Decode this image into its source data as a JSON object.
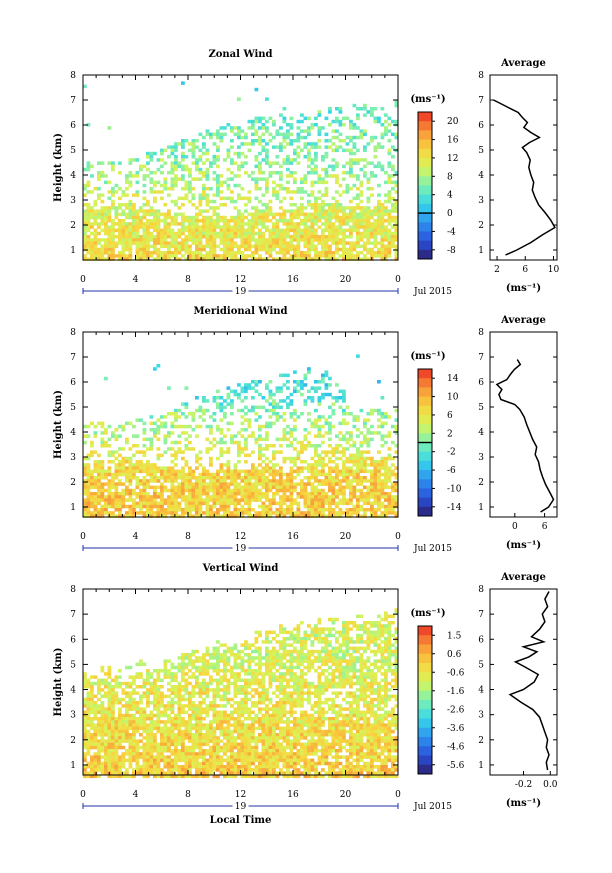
{
  "chart_data": [
    {
      "type": "heatmap",
      "title": "Zonal Wind",
      "ylabel": "Height (km)",
      "unit": "(ms⁻¹)",
      "x_ticks": [
        "0",
        "4",
        "8",
        "12",
        "16",
        "20",
        "0"
      ],
      "y_ticks": [
        "1",
        "2",
        "3",
        "4",
        "5",
        "6",
        "7",
        "8"
      ],
      "ylim": [
        0.6,
        8
      ],
      "xlim": [
        0,
        24
      ],
      "day_label": "19",
      "date_label": "Jul 2015",
      "colorbar": {
        "ticks": [
          "20",
          "16",
          "12",
          "8",
          "4",
          "0",
          "-4",
          "-8"
        ],
        "range": [
          -10,
          22
        ],
        "marker": 0
      },
      "average": {
        "title": "Average",
        "x_ticks": [
          "2",
          "6",
          "10"
        ],
        "xlim": [
          1,
          10.5
        ],
        "xlabel": "(ms⁻¹)",
        "profile": [
          [
            0.8,
            3.2
          ],
          [
            1.0,
            4.8
          ],
          [
            1.3,
            6.8
          ],
          [
            1.6,
            8.4
          ],
          [
            1.9,
            10.2
          ],
          [
            2.2,
            9.6
          ],
          [
            2.5,
            8.8
          ],
          [
            2.8,
            7.9
          ],
          [
            3.1,
            7.4
          ],
          [
            3.4,
            7.0
          ],
          [
            3.7,
            7.2
          ],
          [
            4.0,
            6.8
          ],
          [
            4.3,
            6.5
          ],
          [
            4.6,
            6.7
          ],
          [
            4.9,
            6.2
          ],
          [
            5.1,
            5.6
          ],
          [
            5.3,
            6.6
          ],
          [
            5.5,
            8.0
          ],
          [
            5.7,
            6.8
          ],
          [
            5.9,
            5.8
          ],
          [
            6.1,
            6.3
          ],
          [
            6.3,
            5.6
          ],
          [
            6.5,
            5.0
          ],
          [
            6.7,
            3.6
          ],
          [
            6.9,
            2.2
          ],
          [
            7.0,
            1.5
          ]
        ]
      },
      "data_bounds": [
        [
          0,
          2.8,
          4.6
        ],
        [
          3,
          2.9,
          4.7
        ],
        [
          6,
          2.6,
          5.1
        ],
        [
          9,
          2.4,
          5.8
        ],
        [
          12,
          2.5,
          6.2
        ],
        [
          15,
          2.6,
          6.6
        ],
        [
          18,
          3.0,
          6.7
        ],
        [
          21,
          2.8,
          6.9
        ],
        [
          24,
          2.9,
          7.0
        ]
      ],
      "field_mean": [
        [
          0.8,
          13
        ],
        [
          1.5,
          12
        ],
        [
          2.5,
          11
        ],
        [
          3.5,
          9
        ],
        [
          4.5,
          7
        ],
        [
          5.5,
          6
        ],
        [
          6.5,
          5
        ],
        [
          7.5,
          4
        ]
      ]
    },
    {
      "type": "heatmap",
      "title": "Meridional Wind",
      "ylabel": "Height (km)",
      "unit": "(ms⁻¹)",
      "x_ticks": [
        "0",
        "4",
        "8",
        "12",
        "16",
        "20",
        "0"
      ],
      "y_ticks": [
        "1",
        "2",
        "3",
        "4",
        "5",
        "6",
        "7",
        "8"
      ],
      "ylim": [
        0.6,
        8
      ],
      "xlim": [
        0,
        24
      ],
      "day_label": "19",
      "date_label": "Jul 2015",
      "colorbar": {
        "ticks": [
          "14",
          "10",
          "6",
          "2",
          "-2",
          "-6",
          "-10",
          "-14"
        ],
        "range": [
          -16,
          16
        ],
        "marker": 0
      },
      "average": {
        "title": "Average",
        "x_ticks": [
          "0",
          "6"
        ],
        "xlim": [
          -5,
          8.5
        ],
        "xlabel": "(ms⁻¹)",
        "profile": [
          [
            0.8,
            5.2
          ],
          [
            1.0,
            6.8
          ],
          [
            1.3,
            7.8
          ],
          [
            1.6,
            7.0
          ],
          [
            1.9,
            6.2
          ],
          [
            2.2,
            5.6
          ],
          [
            2.5,
            5.1
          ],
          [
            2.8,
            4.8
          ],
          [
            3.1,
            4.1
          ],
          [
            3.4,
            4.4
          ],
          [
            3.7,
            3.6
          ],
          [
            4.0,
            3.0
          ],
          [
            4.3,
            2.4
          ],
          [
            4.6,
            1.9
          ],
          [
            4.9,
            1.0
          ],
          [
            5.1,
            0.0
          ],
          [
            5.3,
            -2.8
          ],
          [
            5.5,
            -3.2
          ],
          [
            5.7,
            -2.6
          ],
          [
            5.9,
            -3.6
          ],
          [
            6.1,
            -1.6
          ],
          [
            6.3,
            -0.9
          ],
          [
            6.5,
            -0.1
          ],
          [
            6.7,
            1.1
          ],
          [
            6.9,
            0.5
          ]
        ]
      },
      "data_bounds": [
        [
          0,
          2.8,
          4.4
        ],
        [
          3,
          3.0,
          4.5
        ],
        [
          6,
          2.7,
          4.8
        ],
        [
          9,
          2.4,
          5.6
        ],
        [
          12,
          2.6,
          6.0
        ],
        [
          15,
          2.7,
          6.4
        ],
        [
          18,
          2.9,
          6.7
        ],
        [
          21,
          2.9,
          5.0
        ],
        [
          24,
          3.0,
          5.0
        ]
      ],
      "field_mean": [
        [
          0.8,
          8
        ],
        [
          1.5,
          8
        ],
        [
          2.5,
          7
        ],
        [
          3.5,
          4
        ],
        [
          4.5,
          2
        ],
        [
          5.5,
          -2
        ],
        [
          6.5,
          -3
        ],
        [
          7.5,
          0
        ]
      ]
    },
    {
      "type": "heatmap",
      "title": "Vertical Wind",
      "ylabel": "Height (km)",
      "xlabel": "Local Time",
      "unit": "(ms⁻¹)",
      "x_ticks": [
        "0",
        "4",
        "8",
        "12",
        "16",
        "20",
        "0"
      ],
      "y_ticks": [
        "1",
        "2",
        "3",
        "4",
        "5",
        "6",
        "7",
        "8"
      ],
      "ylim": [
        0.6,
        8
      ],
      "xlim": [
        0,
        24
      ],
      "day_label": "19",
      "date_label": "Jul 2015",
      "colorbar": {
        "ticks": [
          "1.5",
          "0.6",
          "-0.6",
          "-1.6",
          "-2.6",
          "-3.6",
          "-4.6",
          "-5.6"
        ],
        "range": [
          -6.1,
          2.0
        ],
        "marker": null
      },
      "average": {
        "title": "Average",
        "x_ticks": [
          "-0.2",
          "0.0"
        ],
        "xlim": [
          -0.45,
          0.05
        ],
        "xlabel": "(ms⁻¹)",
        "profile": [
          [
            0.8,
            -0.02
          ],
          [
            1.1,
            -0.03
          ],
          [
            1.4,
            -0.01
          ],
          [
            1.7,
            -0.03
          ],
          [
            2.0,
            -0.02
          ],
          [
            2.3,
            -0.04
          ],
          [
            2.6,
            -0.06
          ],
          [
            2.9,
            -0.08
          ],
          [
            3.2,
            -0.13
          ],
          [
            3.5,
            -0.22
          ],
          [
            3.8,
            -0.3
          ],
          [
            4.0,
            -0.2
          ],
          [
            4.3,
            -0.12
          ],
          [
            4.6,
            -0.09
          ],
          [
            4.9,
            -0.19
          ],
          [
            5.1,
            -0.26
          ],
          [
            5.3,
            -0.16
          ],
          [
            5.5,
            -0.1
          ],
          [
            5.7,
            -0.2
          ],
          [
            5.9,
            -0.05
          ],
          [
            6.1,
            -0.14
          ],
          [
            6.4,
            -0.08
          ],
          [
            6.7,
            -0.04
          ],
          [
            7.0,
            -0.06
          ],
          [
            7.3,
            -0.02
          ],
          [
            7.6,
            -0.04
          ],
          [
            7.9,
            -0.01
          ]
        ]
      },
      "data_bounds": [
        [
          0,
          4.6,
          4.6
        ],
        [
          3,
          4.8,
          4.8
        ],
        [
          6,
          5.1,
          5.1
        ],
        [
          9,
          5.6,
          5.6
        ],
        [
          12,
          6.0,
          6.0
        ],
        [
          15,
          6.4,
          6.4
        ],
        [
          18,
          6.7,
          6.7
        ],
        [
          21,
          6.9,
          6.9
        ],
        [
          24,
          7.0,
          7.0
        ]
      ],
      "field_mean": [
        [
          0.8,
          0.0
        ],
        [
          2.0,
          -0.3
        ],
        [
          3.5,
          -0.6
        ],
        [
          4.5,
          -0.8
        ],
        [
          5.5,
          -1.0
        ],
        [
          6.5,
          -0.9
        ],
        [
          7.5,
          -0.7
        ]
      ]
    }
  ]
}
